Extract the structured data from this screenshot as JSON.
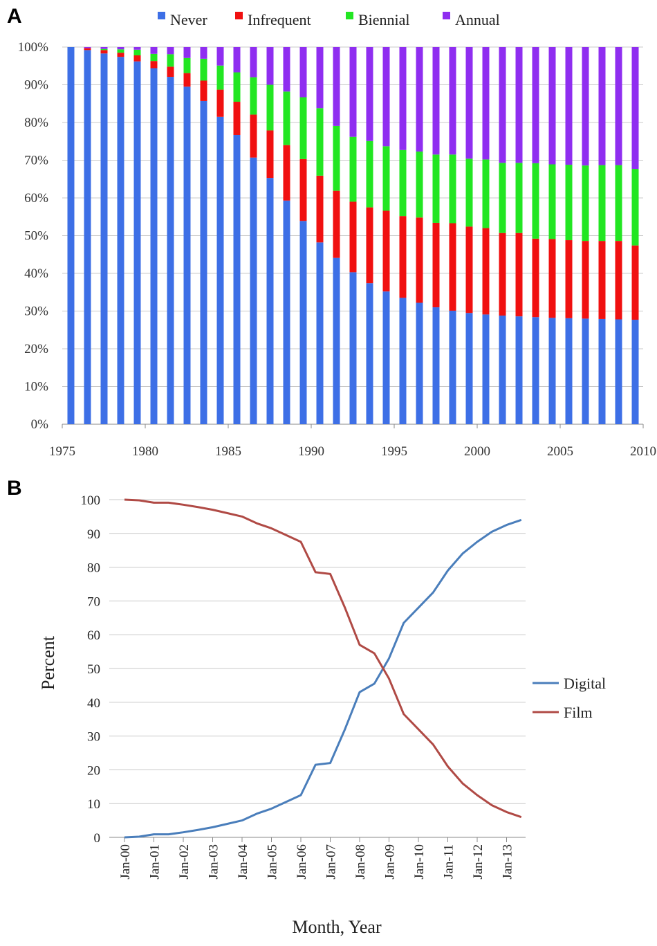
{
  "panels": {
    "a_label": "A",
    "b_label": "B"
  },
  "colors": {
    "never": "#3d6fe6",
    "infrequent": "#f01010",
    "biennial": "#22e622",
    "annual": "#8f2ef0",
    "digital": "#4a7ebb",
    "film": "#b04a45"
  },
  "chart_data": [
    {
      "type": "bar",
      "stacked": true,
      "title": "",
      "xlabel": "",
      "ylabel": "",
      "ylim": [
        0,
        100
      ],
      "y_ticks": [
        "0%",
        "10%",
        "20%",
        "30%",
        "40%",
        "50%",
        "60%",
        "70%",
        "80%",
        "90%",
        "100%"
      ],
      "x_tick_labels": [
        "1975",
        "1980",
        "1985",
        "1990",
        "1995",
        "2000",
        "2005",
        "2010"
      ],
      "legend_position": "top",
      "grid": true,
      "categories": [
        1976,
        1977,
        1978,
        1979,
        1980,
        1981,
        1982,
        1983,
        1984,
        1985,
        1986,
        1987,
        1988,
        1989,
        1990,
        1991,
        1992,
        1993,
        1994,
        1995,
        1996,
        1997,
        1998,
        1999,
        2000,
        2001,
        2002,
        2003,
        2004,
        2005,
        2006,
        2007,
        2008,
        2009,
        2010
      ],
      "series": [
        {
          "name": "Never",
          "values": [
            100,
            99.2,
            98.3,
            97.4,
            96.2,
            94.4,
            92.1,
            89.5,
            85.7,
            81.5,
            76.7,
            70.7,
            65.3,
            59.3,
            53.9,
            48.2,
            44.1,
            40.3,
            37.4,
            35.2,
            33.5,
            32.2,
            31.0,
            30.1,
            29.5,
            29.1,
            28.8,
            28.6,
            28.4,
            28.2,
            28.1,
            28.0,
            27.9,
            27.8,
            27.7
          ]
        },
        {
          "name": "Infrequent",
          "values": [
            0,
            0.5,
            0.9,
            1.1,
            1.6,
            1.9,
            2.7,
            3.6,
            5.4,
            7.2,
            8.8,
            11.4,
            12.6,
            14.7,
            16.4,
            17.7,
            17.8,
            18.7,
            20.1,
            21.4,
            21.7,
            22.6,
            22.4,
            23.2,
            22.9,
            22.9,
            21.9,
            22.1,
            20.8,
            20.9,
            20.7,
            20.6,
            20.7,
            20.8,
            19.7
          ]
        },
        {
          "name": "Biennial",
          "values": [
            0,
            0,
            0.3,
            0.9,
            1.5,
            1.9,
            3.3,
            4.0,
            5.8,
            6.4,
            7.8,
            9.9,
            12.1,
            14.2,
            16.4,
            17.9,
            17.2,
            17.2,
            17.6,
            17.1,
            17.5,
            17.5,
            18.1,
            18.2,
            18.0,
            18.2,
            18.6,
            18.6,
            20.0,
            19.8,
            20.0,
            20.0,
            20.1,
            20.1,
            20.3
          ]
        },
        {
          "name": "Annual",
          "values": [
            0,
            0.3,
            0.5,
            0.6,
            0.7,
            1.8,
            1.9,
            2.9,
            3.1,
            4.9,
            6.7,
            8.0,
            10.0,
            11.8,
            13.3,
            16.2,
            20.9,
            23.8,
            24.9,
            26.3,
            27.3,
            27.7,
            28.5,
            28.5,
            29.6,
            29.8,
            30.7,
            30.7,
            30.8,
            31.1,
            31.2,
            31.4,
            31.3,
            31.3,
            32.3
          ]
        }
      ]
    },
    {
      "type": "line",
      "title": "",
      "xlabel": "Month, Year",
      "ylabel": "Percent",
      "ylim": [
        0,
        100
      ],
      "y_ticks": [
        "0",
        "10",
        "20",
        "30",
        "40",
        "50",
        "60",
        "70",
        "80",
        "90",
        "100"
      ],
      "x_ticks": [
        "Jan-00",
        "Jan-01",
        "Jan-02",
        "Jan-03",
        "Jan-04",
        "Jan-05",
        "Jan-06",
        "Jan-07",
        "Jan-08",
        "Jan-09",
        "Jan-10",
        "Jan-11",
        "Jan-12",
        "Jan-13"
      ],
      "legend_position": "right",
      "grid": true,
      "x": [
        "Jan-00",
        "Jul-00",
        "Jan-01",
        "Jul-01",
        "Jan-02",
        "Jul-02",
        "Jan-03",
        "Jul-03",
        "Jan-04",
        "Jul-04",
        "Jan-05",
        "Jul-05",
        "Jan-06",
        "Jul-06",
        "Jan-07",
        "Jul-07",
        "Jan-08",
        "Jul-08",
        "Jan-09",
        "Jul-09",
        "Jan-10",
        "Jul-10",
        "Jan-11",
        "Jul-11",
        "Jan-12",
        "Jul-12",
        "Jan-13",
        "Jul-13"
      ],
      "series": [
        {
          "name": "Digital",
          "values": [
            0,
            0.2,
            0.9,
            0.9,
            1.5,
            2.2,
            3.0,
            4.0,
            5.0,
            7.0,
            8.5,
            10.5,
            12.5,
            21.5,
            22.0,
            32.0,
            43.0,
            45.5,
            53.0,
            63.5,
            68.0,
            72.5,
            79.0,
            84.0,
            87.5,
            90.5,
            92.5,
            94.0
          ]
        },
        {
          "name": "Film",
          "values": [
            100,
            99.8,
            99.1,
            99.1,
            98.5,
            97.8,
            97.0,
            96.0,
            95.0,
            93.0,
            91.5,
            89.5,
            87.5,
            78.5,
            78.0,
            68.0,
            57.0,
            54.5,
            47.0,
            36.5,
            32.0,
            27.5,
            21.0,
            16.0,
            12.5,
            9.5,
            7.5,
            6.0
          ]
        }
      ]
    }
  ]
}
